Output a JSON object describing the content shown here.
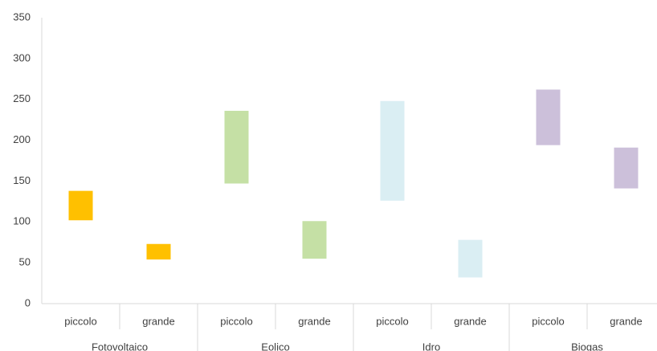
{
  "chart_data": {
    "type": "range-bar",
    "ylim": [
      0,
      350
    ],
    "yticks": [
      0,
      50,
      100,
      150,
      200,
      250,
      300,
      350
    ],
    "grid": false,
    "groups": [
      {
        "name": "Fotovoltaico",
        "color": "#FFC000",
        "categories": [
          "piccolo",
          "grande"
        ],
        "low": [
          102,
          54
        ],
        "high": [
          138,
          73
        ]
      },
      {
        "name": "Eolico",
        "color": "#C5E0A5",
        "categories": [
          "piccolo",
          "grande"
        ],
        "low": [
          147,
          55
        ],
        "high": [
          236,
          101
        ]
      },
      {
        "name": "Idro",
        "color": "#DAEEF3",
        "categories": [
          "piccolo",
          "grande"
        ],
        "low": [
          126,
          32
        ],
        "high": [
          248,
          78
        ]
      },
      {
        "name": "Biogas",
        "color": "#CCC0DA",
        "categories": [
          "piccolo",
          "grande"
        ],
        "low": [
          194,
          141
        ],
        "high": [
          262,
          191
        ]
      }
    ]
  }
}
